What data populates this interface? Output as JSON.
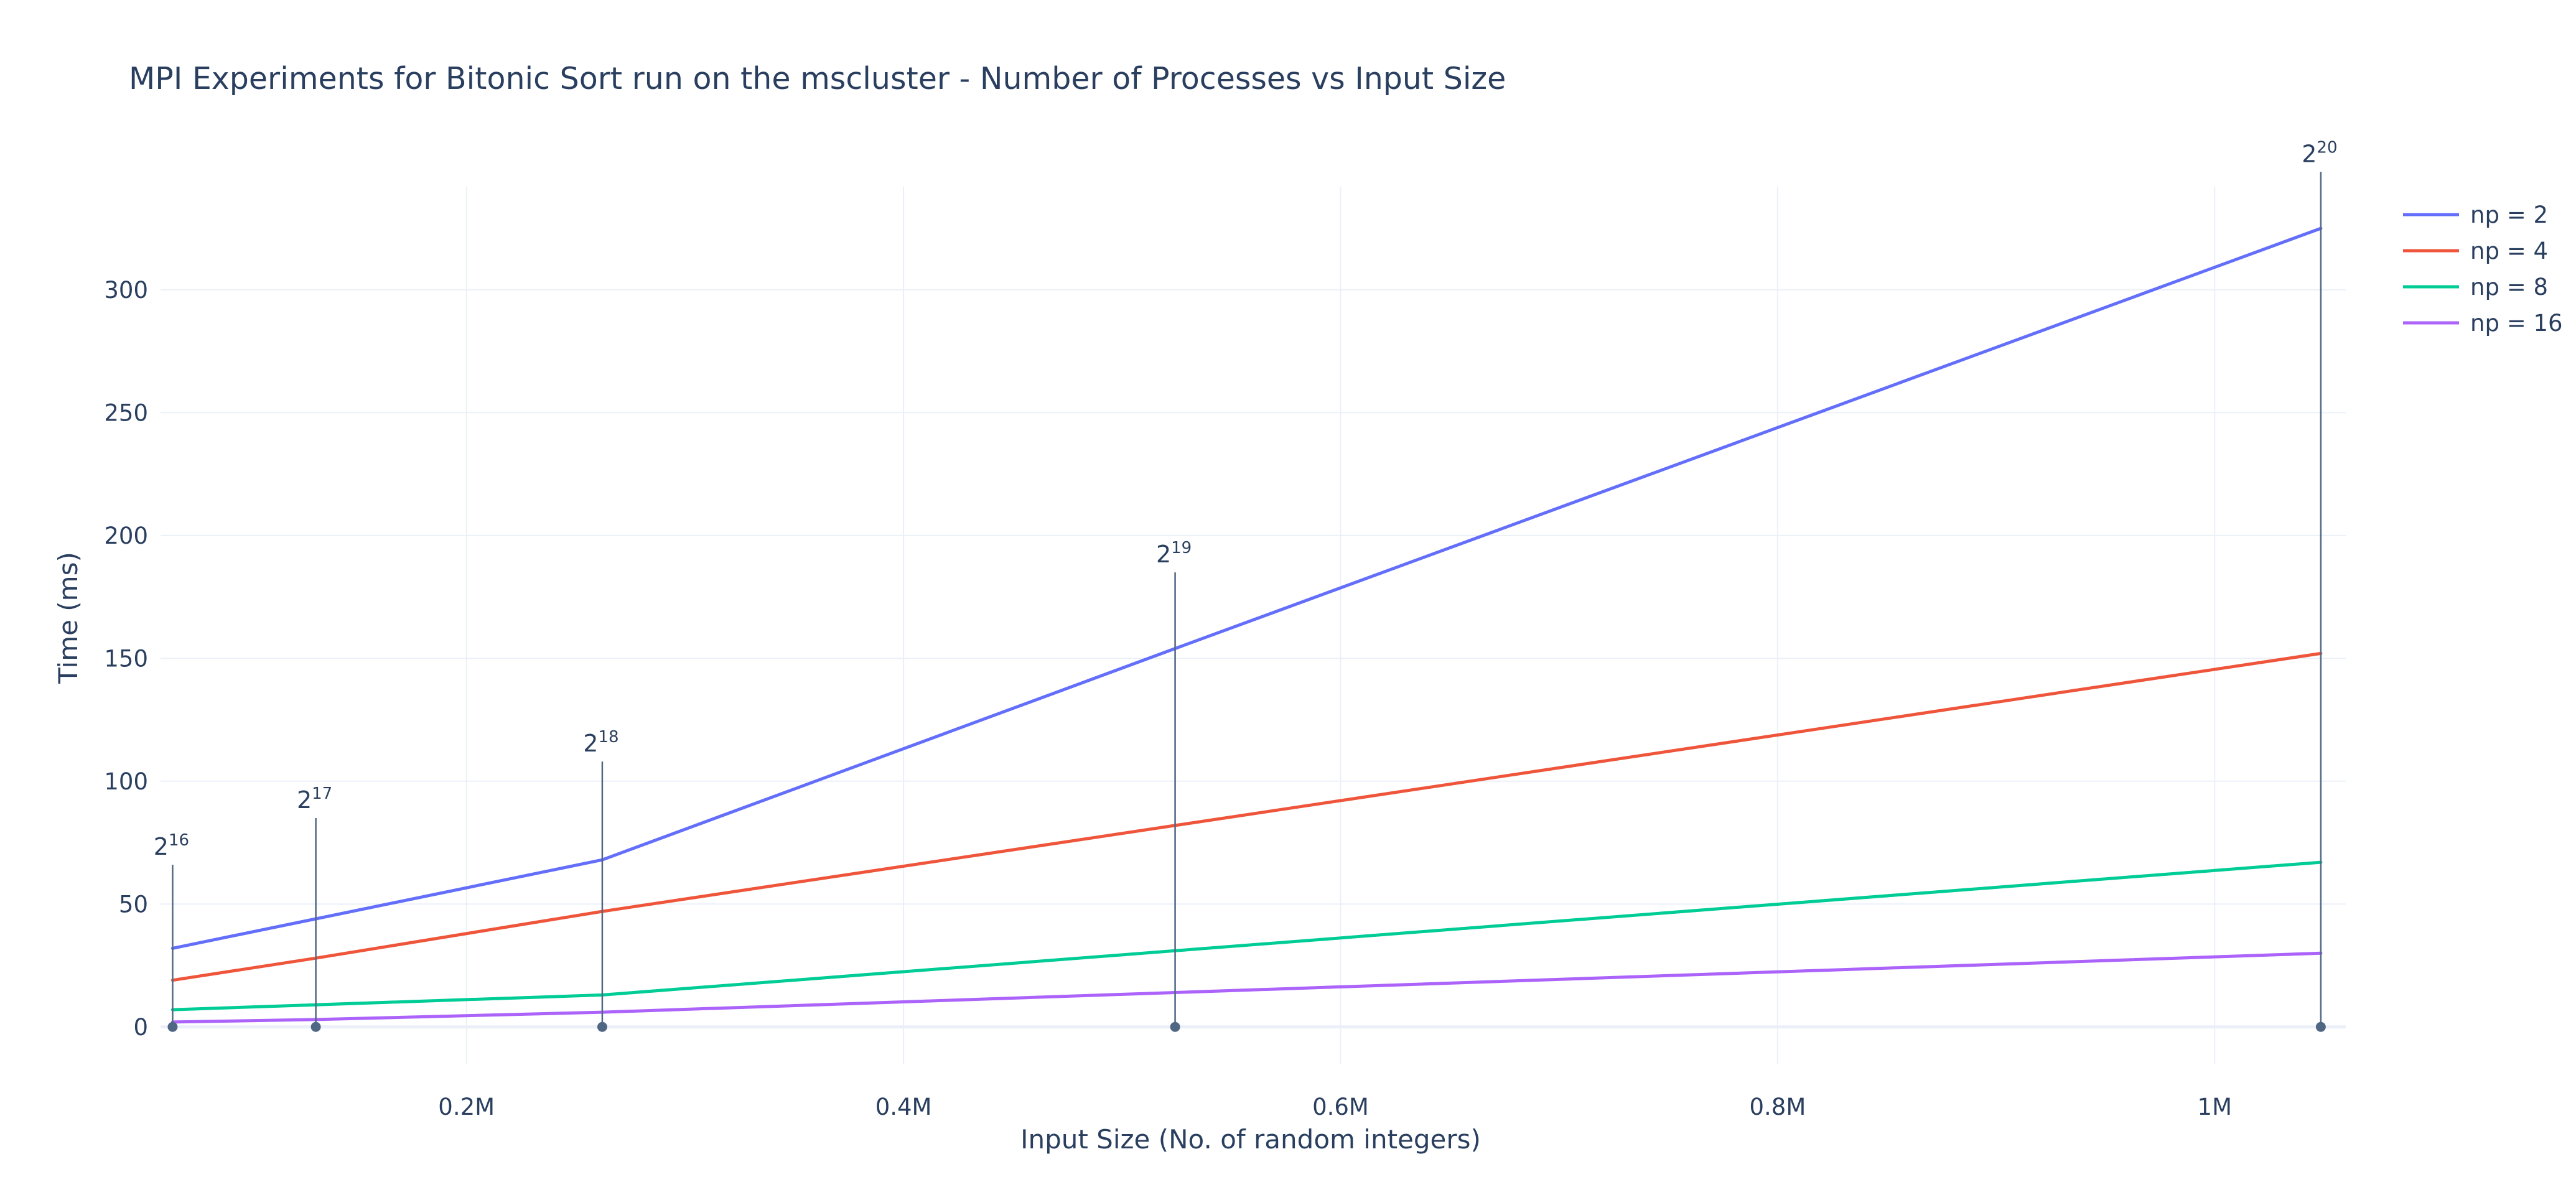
{
  "chart_data": {
    "type": "line",
    "title": "MPI Experiments for Bitonic Sort run on the mscluster - Number of Processes vs Input Size",
    "xlabel": "Input Size (No. of random integers)",
    "ylabel": "Time (ms)",
    "xlim": [
      60000,
      1060000
    ],
    "ylim": [
      -15,
      342
    ],
    "x": [
      65536,
      131072,
      262144,
      524288,
      1048576
    ],
    "x_ticks": [
      {
        "value": 200000,
        "label": "0.2M"
      },
      {
        "value": 400000,
        "label": "0.4M"
      },
      {
        "value": 600000,
        "label": "0.6M"
      },
      {
        "value": 800000,
        "label": "0.8M"
      },
      {
        "value": 1000000,
        "label": "1M"
      }
    ],
    "y_ticks": [
      {
        "value": 0,
        "label": "0"
      },
      {
        "value": 50,
        "label": "50"
      },
      {
        "value": 100,
        "label": "100"
      },
      {
        "value": 150,
        "label": "150"
      },
      {
        "value": 200,
        "label": "200"
      },
      {
        "value": 250,
        "label": "250"
      },
      {
        "value": 300,
        "label": "300"
      }
    ],
    "series": [
      {
        "name": "np = 2",
        "color": "#636efa",
        "values": [
          32,
          44,
          68,
          154,
          325
        ]
      },
      {
        "name": "np = 4",
        "color": "#ef553b",
        "values": [
          19,
          28,
          47,
          82,
          152
        ]
      },
      {
        "name": "np = 8",
        "color": "#00cc96",
        "values": [
          7,
          9,
          13,
          31,
          67
        ]
      },
      {
        "name": "np = 16",
        "color": "#ab63fa",
        "values": [
          2,
          3,
          6,
          14,
          30
        ]
      }
    ],
    "annotations": [
      {
        "x": 65536,
        "y_top": 66,
        "base": "2",
        "exp": "16"
      },
      {
        "x": 131072,
        "y_top": 85,
        "base": "2",
        "exp": "17"
      },
      {
        "x": 262144,
        "y_top": 108,
        "base": "2",
        "exp": "18"
      },
      {
        "x": 524288,
        "y_top": 185,
        "base": "2",
        "exp": "19"
      },
      {
        "x": 1048576,
        "y_top": 348,
        "base": "2",
        "exp": "20"
      }
    ],
    "grid": true,
    "legend_position": "top-right"
  }
}
